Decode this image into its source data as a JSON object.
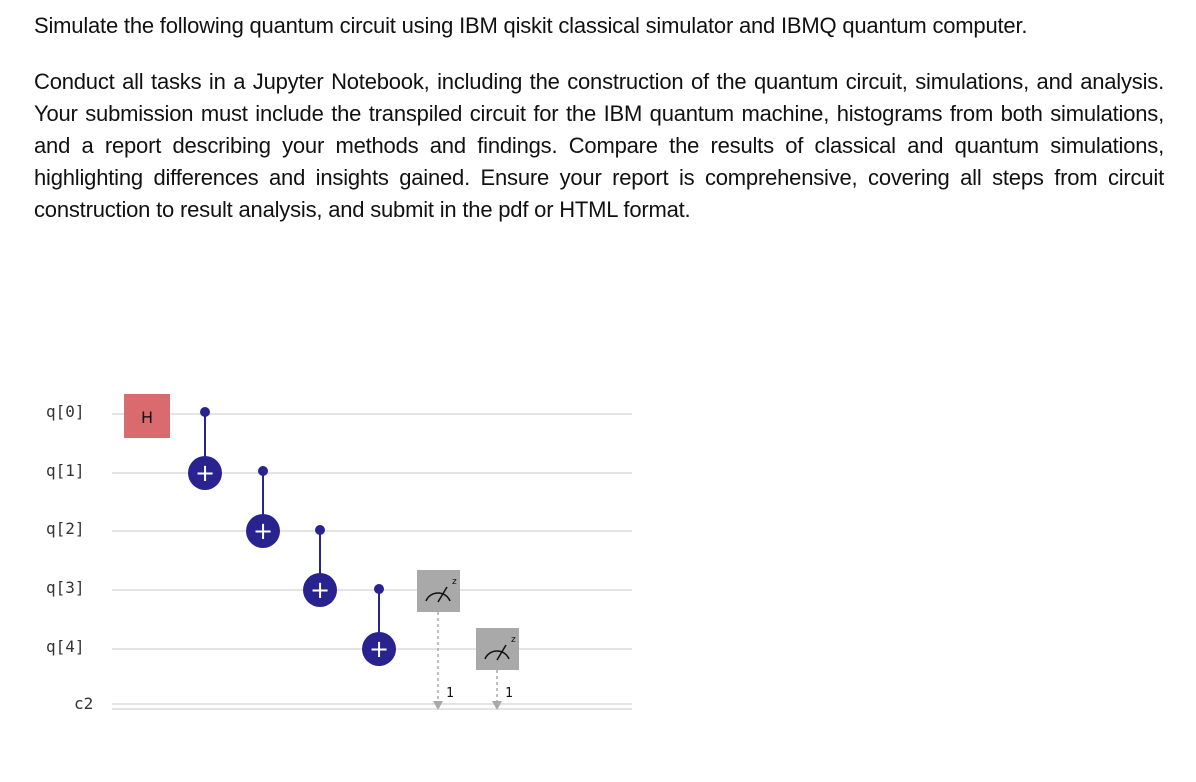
{
  "prompt": {
    "paragraph_1": "Simulate the following quantum circuit using IBM qiskit classical simulator and IBMQ quantum computer.",
    "paragraph_2": "Conduct all tasks in a Jupyter Notebook, including the construction of the quantum circuit, simulations, and analysis. Your submission must include the transpiled circuit for the IBM quantum machine, histograms from both simulations, and a report describing your methods and findings. Compare the results of classical and quantum simulations, highlighting differences and insights gained. Ensure your report is comprehensive, covering all steps from circuit construction to result analysis, and submit in the pdf or HTML format."
  },
  "circuit": {
    "qubit_labels": [
      "q[0]",
      "q[1]",
      "q[2]",
      "q[3]",
      "q[4]"
    ],
    "classical_label": "c2",
    "hadamard_label": "H",
    "cnot_symbol": "+",
    "measure_basis": "z",
    "measure_bits": [
      "1",
      "1"
    ],
    "colors": {
      "hadamard": "#d96b6e",
      "cnot": "#28238f",
      "measure": "#a9a9a9",
      "wire": "#e4e4e4"
    }
  }
}
